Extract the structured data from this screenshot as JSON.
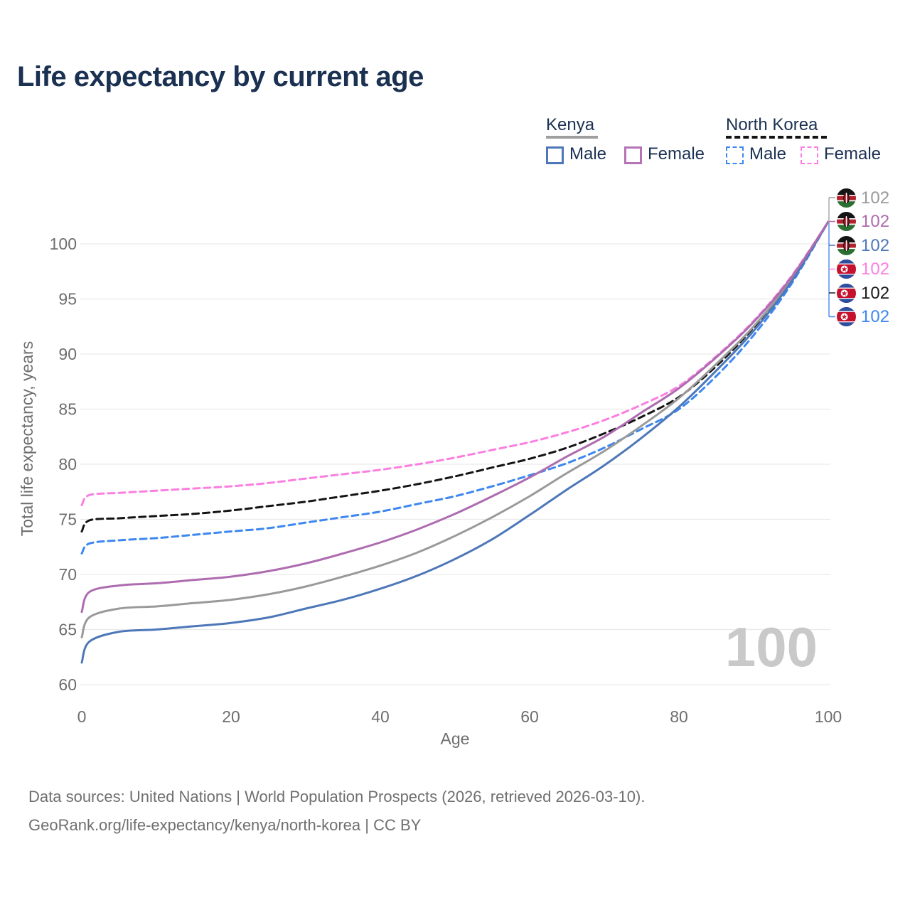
{
  "title": "Life expectancy by current age",
  "legend": {
    "groups": [
      {
        "label": "Kenya",
        "line_style": "solid",
        "underline_color": "#9e9e9e",
        "items": [
          {
            "label": "Male",
            "color": "#4d77b8"
          },
          {
            "label": "Female",
            "color": "#b673b6"
          }
        ]
      },
      {
        "label": "North Korea",
        "line_style": "dashed",
        "underline_color": "#141414",
        "items": [
          {
            "label": "Male",
            "color": "#3d87f0"
          },
          {
            "label": "Female",
            "color": "#fb7fe0"
          }
        ]
      }
    ]
  },
  "chart_data": {
    "type": "line",
    "title": "Life expectancy by current age",
    "xlabel": "Age",
    "ylabel": "Total life expectancy, years",
    "xlim": [
      0,
      100
    ],
    "ylim": [
      59,
      103
    ],
    "x_ticks": [
      0,
      20,
      40,
      60,
      80,
      100
    ],
    "y_ticks": [
      60,
      65,
      70,
      75,
      80,
      85,
      90,
      95,
      100
    ],
    "grid": "horizontal",
    "legend_position": "top-right",
    "watermark": "100",
    "ages": [
      0,
      1,
      5,
      10,
      15,
      20,
      25,
      30,
      35,
      40,
      45,
      50,
      55,
      60,
      65,
      70,
      75,
      80,
      85,
      90,
      95,
      100
    ],
    "series": [
      {
        "key": "nk_total",
        "name": "North Korea (total)",
        "country": "North Korea",
        "group": "total",
        "color": "#141414",
        "line_style": "dashed",
        "values": [
          73.9,
          74.9,
          75.1,
          75.3,
          75.5,
          75.8,
          76.2,
          76.6,
          77.1,
          77.6,
          78.2,
          78.9,
          79.7,
          80.5,
          81.5,
          82.8,
          84.3,
          86.1,
          88.9,
          92.4,
          96.6,
          102
        ]
      },
      {
        "key": "nk_male",
        "name": "North Korea Male",
        "country": "North Korea",
        "group": "male",
        "color": "#3d87f0",
        "line_style": "dashed",
        "values": [
          71.9,
          72.8,
          73.1,
          73.3,
          73.6,
          73.9,
          74.2,
          74.7,
          75.2,
          75.7,
          76.4,
          77.1,
          78.0,
          79.0,
          80.1,
          81.5,
          83.2,
          85.0,
          88.0,
          91.7,
          96.3,
          102
        ]
      },
      {
        "key": "nk_female",
        "name": "North Korea Female",
        "country": "North Korea",
        "group": "female",
        "color": "#fb7fe0",
        "line_style": "dashed",
        "values": [
          76.3,
          77.2,
          77.4,
          77.6,
          77.8,
          78.0,
          78.3,
          78.7,
          79.1,
          79.5,
          80.0,
          80.6,
          81.3,
          82.0,
          82.9,
          84.0,
          85.4,
          87.1,
          89.8,
          93.0,
          97.0,
          102
        ]
      },
      {
        "key": "kenya_total",
        "name": "Kenya (total)",
        "country": "Kenya",
        "group": "total",
        "color": "#9a9a9a",
        "line_style": "solid",
        "values": [
          64.3,
          66.1,
          66.9,
          67.1,
          67.4,
          67.7,
          68.2,
          68.9,
          69.8,
          70.8,
          72.0,
          73.5,
          75.2,
          77.1,
          79.2,
          81.2,
          83.5,
          86.0,
          89.1,
          92.5,
          96.7,
          102
        ]
      },
      {
        "key": "kenya_male",
        "name": "Kenya Male",
        "country": "Kenya",
        "group": "male",
        "color": "#4d77b8",
        "line_style": "solid",
        "values": [
          62.0,
          63.9,
          64.8,
          65.0,
          65.3,
          65.6,
          66.1,
          66.9,
          67.7,
          68.7,
          69.9,
          71.4,
          73.2,
          75.4,
          77.7,
          79.9,
          82.4,
          85.2,
          88.5,
          92.1,
          96.5,
          102
        ]
      },
      {
        "key": "kenya_female",
        "name": "Kenya Female",
        "country": "Kenya",
        "group": "female",
        "color": "#ae6cb0",
        "line_style": "solid",
        "values": [
          66.6,
          68.4,
          69.0,
          69.2,
          69.5,
          69.8,
          70.3,
          71.0,
          71.9,
          72.9,
          74.1,
          75.5,
          77.1,
          78.8,
          80.7,
          82.5,
          84.7,
          86.9,
          89.7,
          92.9,
          96.9,
          102
        ]
      }
    ],
    "end_labels": [
      {
        "flag": "kenya",
        "series": "kenya_total",
        "value": "102",
        "color": "#9a9a9a"
      },
      {
        "flag": "kenya",
        "series": "kenya_female",
        "value": "102",
        "color": "#ae6cb0"
      },
      {
        "flag": "kenya",
        "series": "kenya_male",
        "value": "102",
        "color": "#4d77b8"
      },
      {
        "flag": "north-korea",
        "series": "nk_female",
        "value": "102",
        "color": "#fb7fe0"
      },
      {
        "flag": "north-korea",
        "series": "nk_total",
        "value": "102",
        "color": "#1a1a1a"
      },
      {
        "flag": "north-korea",
        "series": "nk_male",
        "value": "102",
        "color": "#3d87f0"
      }
    ]
  },
  "footer": {
    "line1": "Data sources: United Nations | World Population Prospects (2026, retrieved 2026-03-10).",
    "line2": "GeoRank.org/life-expectancy/kenya/north-korea | CC BY"
  }
}
